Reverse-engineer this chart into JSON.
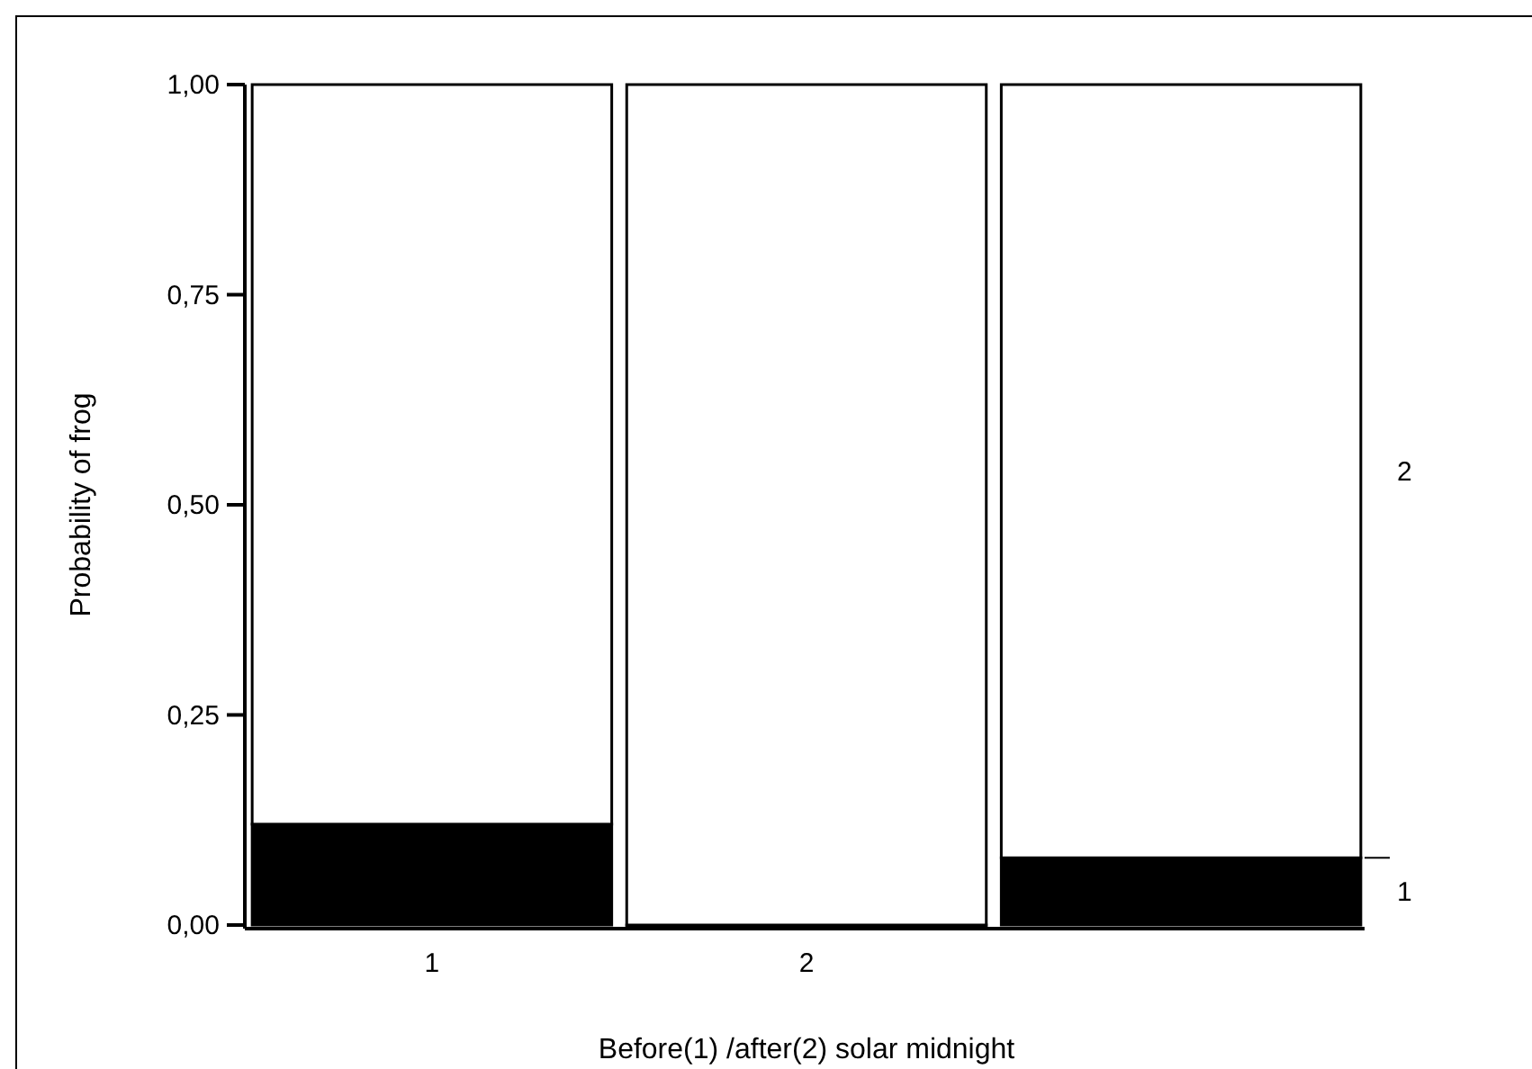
{
  "chart_data": {
    "type": "bar",
    "stacked": true,
    "xlabel": "Before(1) /after(2) solar midnight",
    "ylabel": "Probability of frog",
    "categories": [
      "1",
      "2",
      null
    ],
    "series": [
      {
        "name": "1",
        "color": "#000000",
        "values": [
          0.12,
          0,
          0.08
        ]
      },
      {
        "name": "2",
        "color": "#ffffff",
        "values": [
          0.88,
          1,
          0.92
        ]
      }
    ],
    "ylim": [
      0,
      1
    ],
    "yticks": [
      {
        "value": 0,
        "label": "0,00"
      },
      {
        "value": 0.25,
        "label": "0,25"
      },
      {
        "value": 0.5,
        "label": "0,50"
      },
      {
        "value": 0.75,
        "label": "0,75"
      },
      {
        "value": 1,
        "label": "1,00"
      }
    ],
    "legend": "right"
  }
}
